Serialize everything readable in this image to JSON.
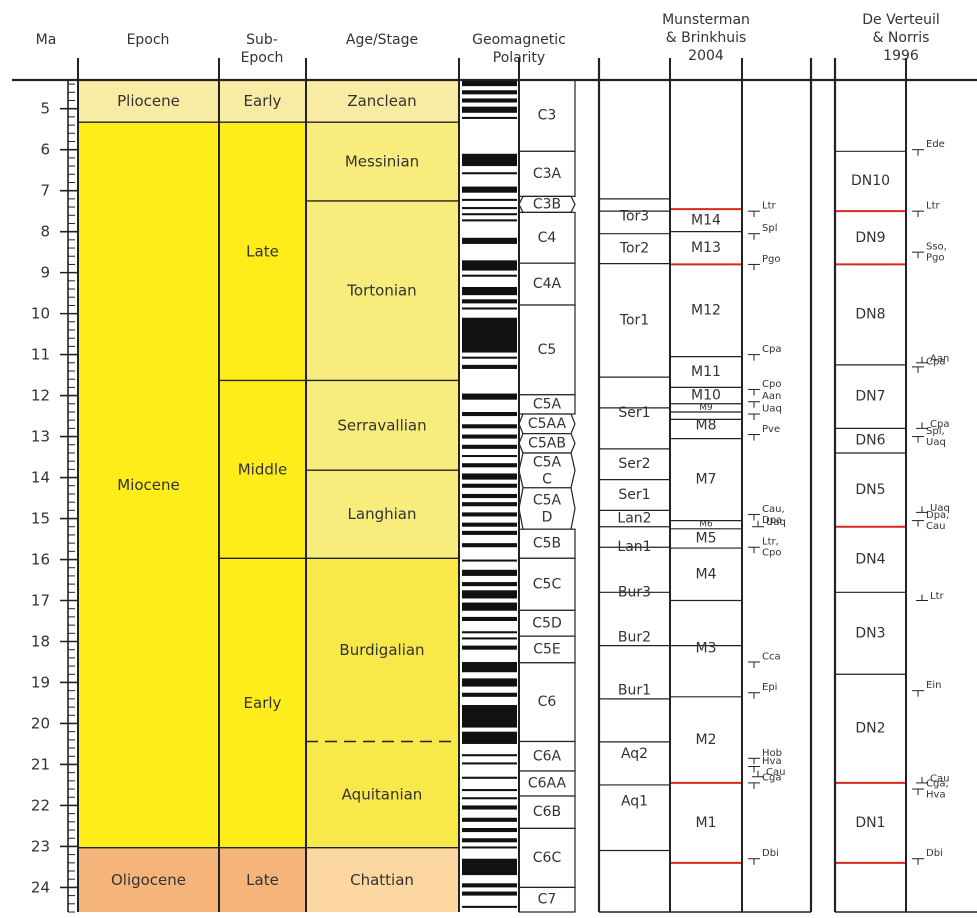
{
  "headers": {
    "ma": "Ma",
    "epoch": "Epoch",
    "subepoch": [
      "Sub-",
      "Epoch"
    ],
    "age": "Age/Stage",
    "polarity": [
      "Geomagnetic",
      "Polarity"
    ],
    "munsterman": [
      "Munsterman",
      "& Brinkhuis",
      "2004"
    ],
    "deverteuil": [
      "De Verteuil",
      "& Norris",
      "1996"
    ]
  },
  "axis": {
    "min": 4.3,
    "max": 24.6,
    "major_ticks": [
      5,
      6,
      7,
      8,
      9,
      10,
      11,
      12,
      13,
      14,
      15,
      16,
      17,
      18,
      19,
      20,
      21,
      22,
      23,
      24
    ],
    "minor_step": 0.2
  },
  "colors": {
    "pliocene": "#f8eba3",
    "miocene": "#ffed1b",
    "stage_light": "#f7ec7c",
    "stage_mid": "#f9e84a",
    "oligocene": "#f5b57a",
    "chattian": "#fcd7a2",
    "red_line": "#d9281e",
    "line": "#222222"
  },
  "epochs": [
    {
      "label": "Pliocene",
      "top": 4.3,
      "base": 5.33,
      "color": "#f8eba3"
    },
    {
      "label": "Miocene",
      "top": 5.33,
      "base": 23.03,
      "color": "#ffed1b"
    },
    {
      "label": "Oligocene",
      "top": 23.03,
      "base": 24.6,
      "color": "#f5b57a"
    }
  ],
  "subepochs": [
    {
      "label": "Early",
      "top": 4.3,
      "base": 5.33,
      "color": "#f8eba3"
    },
    {
      "label": "Late",
      "top": 5.33,
      "base": 11.63,
      "color": "#ffed1b"
    },
    {
      "label": "Middle",
      "top": 11.63,
      "base": 15.97,
      "color": "#ffed1b"
    },
    {
      "label": "Early",
      "top": 15.97,
      "base": 23.03,
      "color": "#ffed1b"
    },
    {
      "label": "Late",
      "top": 23.03,
      "base": 24.6,
      "color": "#f5b57a"
    }
  ],
  "stages": [
    {
      "label": "Zanclean",
      "top": 4.3,
      "base": 5.33,
      "color": "#f8eba3"
    },
    {
      "label": "Messinian",
      "top": 5.33,
      "base": 7.25,
      "color": "#f7ec7c"
    },
    {
      "label": "Tortonian",
      "top": 7.25,
      "base": 11.63,
      "color": "#f7ec7c"
    },
    {
      "label": "Serravallian",
      "top": 11.63,
      "base": 13.82,
      "color": "#f7ec7c"
    },
    {
      "label": "Langhian",
      "top": 13.82,
      "base": 15.97,
      "color": "#f7ec7c"
    },
    {
      "label": "Burdigalian",
      "top": 15.97,
      "base": 20.44,
      "color": "#f9e84a"
    },
    {
      "label": "Aquitanian",
      "top": 20.44,
      "base": 23.03,
      "color": "#f9e84a"
    },
    {
      "label": "Chattian",
      "top": 23.03,
      "base": 24.6,
      "color": "#fcd7a2"
    }
  ],
  "polarity_black": [
    [
      4.3,
      4.45
    ],
    [
      4.55,
      4.65
    ],
    [
      4.75,
      4.85
    ],
    [
      4.95,
      5.1
    ],
    [
      5.2,
      5.25
    ],
    [
      6.1,
      6.4
    ],
    [
      6.55,
      6.6
    ],
    [
      6.9,
      7.05
    ],
    [
      7.2,
      7.25
    ],
    [
      7.4,
      7.45
    ],
    [
      7.55,
      7.6
    ],
    [
      7.7,
      7.75
    ],
    [
      8.15,
      8.3
    ],
    [
      8.7,
      8.95
    ],
    [
      9.05,
      9.1
    ],
    [
      9.35,
      9.55
    ],
    [
      9.65,
      9.75
    ],
    [
      9.85,
      9.9
    ],
    [
      10.1,
      10.95
    ],
    [
      11.05,
      11.1
    ],
    [
      11.25,
      11.35
    ],
    [
      11.95,
      12.1
    ],
    [
      12.4,
      12.5
    ],
    [
      12.7,
      12.8
    ],
    [
      12.95,
      13.05
    ],
    [
      13.2,
      13.3
    ],
    [
      13.45,
      13.5
    ],
    [
      13.65,
      13.75
    ],
    [
      13.9,
      14.05
    ],
    [
      14.15,
      14.25
    ],
    [
      14.4,
      14.5
    ],
    [
      14.6,
      14.7
    ],
    [
      14.85,
      14.95
    ],
    [
      15.1,
      15.2
    ],
    [
      15.3,
      15.4
    ],
    [
      15.6,
      15.7
    ],
    [
      16.0,
      16.05
    ],
    [
      16.25,
      16.4
    ],
    [
      16.55,
      16.65
    ],
    [
      16.75,
      16.95
    ],
    [
      17.05,
      17.25
    ],
    [
      17.4,
      17.5
    ],
    [
      17.75,
      17.8
    ],
    [
      17.9,
      17.95
    ],
    [
      18.1,
      18.2
    ],
    [
      18.5,
      18.75
    ],
    [
      18.9,
      19.1
    ],
    [
      19.25,
      19.35
    ],
    [
      19.55,
      20.1
    ],
    [
      20.2,
      20.5
    ],
    [
      20.75,
      20.8
    ],
    [
      20.95,
      21.0
    ],
    [
      21.3,
      21.35
    ],
    [
      21.6,
      21.65
    ],
    [
      21.8,
      21.85
    ],
    [
      22.0,
      22.1
    ],
    [
      22.3,
      22.4
    ],
    [
      22.55,
      22.65
    ],
    [
      22.8,
      22.9
    ],
    [
      23.0,
      23.05
    ],
    [
      23.3,
      23.7
    ],
    [
      23.9,
      24.0
    ],
    [
      24.1,
      24.2
    ],
    [
      24.45,
      24.5
    ]
  ],
  "chrons": [
    {
      "label": "C3",
      "top": 4.3,
      "base": 6.04,
      "shape": "rect"
    },
    {
      "label": "C3A",
      "top": 6.04,
      "base": 7.14,
      "shape": "rect"
    },
    {
      "label": "C3B",
      "top": 7.14,
      "base": 7.53,
      "shape": "hex"
    },
    {
      "label": "C4",
      "top": 7.53,
      "base": 8.77,
      "shape": "rect"
    },
    {
      "label": "C4A",
      "top": 8.77,
      "base": 9.79,
      "shape": "rect"
    },
    {
      "label": "C5",
      "top": 9.79,
      "base": 11.98,
      "shape": "rect"
    },
    {
      "label": "C5A",
      "top": 11.98,
      "base": 12.45,
      "shape": "rect"
    },
    {
      "label": "C5AA",
      "top": 12.45,
      "base": 12.93,
      "shape": "hex"
    },
    {
      "label": "C5AB",
      "top": 12.93,
      "base": 13.4,
      "shape": "hex"
    },
    {
      "label": [
        "C5A",
        "C"
      ],
      "top": 13.4,
      "base": 14.25,
      "shape": "hex"
    },
    {
      "label": [
        "C5A",
        "D"
      ],
      "top": 14.25,
      "base": 15.26,
      "shape": "hex"
    },
    {
      "label": "C5B",
      "top": 15.26,
      "base": 15.97,
      "shape": "rect"
    },
    {
      "label": "C5C",
      "top": 15.97,
      "base": 17.24,
      "shape": "rect"
    },
    {
      "label": "C5D",
      "top": 17.24,
      "base": 17.87,
      "shape": "rect"
    },
    {
      "label": "C5E",
      "top": 17.87,
      "base": 18.52,
      "shape": "rect"
    },
    {
      "label": "C6",
      "top": 18.52,
      "base": 20.44,
      "shape": "rect"
    },
    {
      "label": "C6A",
      "top": 20.44,
      "base": 21.16,
      "shape": "rect"
    },
    {
      "label": "C6AA",
      "top": 21.16,
      "base": 21.77,
      "shape": "rect"
    },
    {
      "label": "C6B",
      "top": 21.77,
      "base": 22.56,
      "shape": "rect"
    },
    {
      "label": "C6C",
      "top": 22.56,
      "base": 24.0,
      "shape": "rect"
    },
    {
      "label": "C7",
      "top": 24.0,
      "base": 24.6,
      "shape": "rect"
    }
  ],
  "munsterman_a": {
    "boundaries": [
      7.2,
      7.5,
      8.05,
      8.78,
      11.55,
      12.3,
      13.3,
      14.05,
      14.8,
      15.2,
      15.7,
      16.8,
      18.1,
      19.4,
      20.45,
      21.5,
      23.1
    ],
    "zones": [
      {
        "label": "Tor3",
        "top": 7.2,
        "base": 8.05
      },
      {
        "label": "Tor2",
        "top": 8.05,
        "base": 8.78
      },
      {
        "label": "Tor1",
        "top": 8.78,
        "base": 11.55
      },
      {
        "label": "Ser1",
        "top": 11.55,
        "base": 13.3
      },
      {
        "label": "Ser2",
        "top": 13.3,
        "base": 14.05
      },
      {
        "label": "Ser1",
        "top": 14.05,
        "base": 14.8
      },
      {
        "label": "Lan2",
        "top": 14.8,
        "base": 15.2
      },
      {
        "label": "Lan1",
        "top": 15.2,
        "base": 16.2
      },
      {
        "label": "Bur3",
        "top": 16.2,
        "base": 17.4
      },
      {
        "label": "Bur2",
        "top": 17.4,
        "base": 18.4
      },
      {
        "label": "Bur1",
        "top": 18.4,
        "base": 20.0
      },
      {
        "label": "Aq2",
        "top": 20.0,
        "base": 21.5
      },
      {
        "label": "Aq1",
        "top": 21.5,
        "base": 22.3
      }
    ]
  },
  "munsterman_b": {
    "lines": [
      {
        "at": 7.45,
        "red": true
      },
      {
        "at": 8.0,
        "red": false
      },
      {
        "at": 8.8,
        "red": true
      },
      {
        "at": 11.05,
        "red": false
      },
      {
        "at": 11.8,
        "red": false
      },
      {
        "at": 12.2,
        "red": false
      },
      {
        "at": 12.4,
        "red": false
      },
      {
        "at": 12.58,
        "red": false
      },
      {
        "at": 13.05,
        "red": false
      },
      {
        "at": 15.05,
        "red": false
      },
      {
        "at": 15.25,
        "red": false
      },
      {
        "at": 15.72,
        "red": false
      },
      {
        "at": 17.0,
        "red": false
      },
      {
        "at": 18.1,
        "red": false
      },
      {
        "at": 19.35,
        "red": false
      },
      {
        "at": 21.45,
        "red": true
      },
      {
        "at": 23.4,
        "red": true
      }
    ],
    "zones": [
      {
        "label": "M14",
        "top": 7.45,
        "base": 8.0,
        "small": false
      },
      {
        "label": "M13",
        "top": 8.0,
        "base": 8.8,
        "small": false
      },
      {
        "label": "M12",
        "top": 8.8,
        "base": 11.05,
        "small": false
      },
      {
        "label": "M11",
        "top": 11.05,
        "base": 11.8,
        "small": false
      },
      {
        "label": "M10",
        "top": 11.8,
        "base": 12.2,
        "small": false
      },
      {
        "label": "M9",
        "top": 12.2,
        "base": 12.4,
        "small": true
      },
      {
        "label": "M8",
        "top": 12.4,
        "base": 13.05,
        "small": false
      },
      {
        "label": "M7",
        "top": 13.05,
        "base": 15.05,
        "small": false
      },
      {
        "label": "M6",
        "top": 15.05,
        "base": 15.25,
        "small": true
      },
      {
        "label": "M5",
        "top": 15.25,
        "base": 15.72,
        "small": false
      },
      {
        "label": "M4",
        "top": 15.72,
        "base": 17.0,
        "small": false
      },
      {
        "label": "M3",
        "top": 17.0,
        "base": 19.35,
        "small": false
      },
      {
        "label": "M2",
        "top": 19.35,
        "base": 21.45,
        "small": false
      },
      {
        "label": "M1",
        "top": 21.45,
        "base": 23.4,
        "small": false
      }
    ]
  },
  "munsterman_events": [
    {
      "at": 7.5,
      "lines": [
        "Ltr"
      ]
    },
    {
      "at": 8.05,
      "lines": [
        "Spl"
      ]
    },
    {
      "at": 8.8,
      "lines": [
        "Pgo"
      ]
    },
    {
      "at": 11.0,
      "lines": [
        "Cpa"
      ]
    },
    {
      "at": 11.85,
      "lines": [
        "Cpo"
      ]
    },
    {
      "at": 12.15,
      "lines": [
        "Aan"
      ]
    },
    {
      "at": 12.45,
      "lines": [
        "Uaq"
      ]
    },
    {
      "at": 12.95,
      "lines": [
        "Pve"
      ]
    },
    {
      "at": 14.9,
      "lines": [
        "Cau,",
        "Dpa"
      ]
    },
    {
      "at": 15.7,
      "lines": [
        "Ltr,",
        "Cpo"
      ]
    },
    {
      "at": 18.5,
      "lines": [
        "Cca"
      ]
    },
    {
      "at": 19.25,
      "lines": [
        "Epi"
      ]
    },
    {
      "at": 20.85,
      "lines": [
        "Hob"
      ]
    },
    {
      "at": 21.05,
      "lines": [
        "Hva"
      ]
    },
    {
      "at": 21.45,
      "lines": [
        "Cga"
      ]
    },
    {
      "at": 23.3,
      "lines": [
        "Dbi"
      ]
    }
  ],
  "munsterman_events_up": [
    {
      "at": 15.2,
      "label": "Uaq"
    },
    {
      "at": 21.3,
      "label": "Cau"
    }
  ],
  "deverteuil": {
    "lines": [
      {
        "at": 6.04,
        "red": false
      },
      {
        "at": 7.5,
        "red": true
      },
      {
        "at": 8.8,
        "red": true
      },
      {
        "at": 11.25,
        "red": false
      },
      {
        "at": 12.8,
        "red": false
      },
      {
        "at": 13.4,
        "red": false
      },
      {
        "at": 15.2,
        "red": true
      },
      {
        "at": 16.8,
        "red": false
      },
      {
        "at": 18.8,
        "red": false
      },
      {
        "at": 21.45,
        "red": true
      },
      {
        "at": 23.4,
        "red": true
      }
    ],
    "zones": [
      {
        "label": "DN10",
        "top": 6.04,
        "base": 7.5
      },
      {
        "label": "DN9",
        "top": 7.5,
        "base": 8.8
      },
      {
        "label": "DN8",
        "top": 8.8,
        "base": 11.25
      },
      {
        "label": "DN7",
        "top": 11.25,
        "base": 12.8
      },
      {
        "label": "DN6",
        "top": 12.8,
        "base": 13.4
      },
      {
        "label": "DN5",
        "top": 13.4,
        "base": 15.2
      },
      {
        "label": "DN4",
        "top": 15.2,
        "base": 16.8
      },
      {
        "label": "DN3",
        "top": 16.8,
        "base": 18.8
      },
      {
        "label": "DN2",
        "top": 18.8,
        "base": 21.45
      },
      {
        "label": "DN1",
        "top": 21.45,
        "base": 23.4
      }
    ]
  },
  "deverteuil_events": [
    {
      "at": 6.0,
      "lines": [
        "Ede"
      ]
    },
    {
      "at": 7.5,
      "lines": [
        "Ltr"
      ]
    },
    {
      "at": 8.5,
      "lines": [
        "Sso,",
        "Pgo"
      ]
    },
    {
      "at": 11.3,
      "lines": [
        "Cpa"
      ]
    },
    {
      "at": 13.0,
      "lines": [
        "Spl,",
        "Uaq"
      ]
    },
    {
      "at": 15.05,
      "lines": [
        "Dpa,",
        "Cau"
      ]
    },
    {
      "at": 19.2,
      "lines": [
        "Ein"
      ]
    },
    {
      "at": 21.6,
      "lines": [
        "Cga,",
        "Hva"
      ]
    },
    {
      "at": 23.3,
      "lines": [
        "Dbi"
      ]
    }
  ],
  "deverteuil_events_up": [
    {
      "at": 11.2,
      "label": "Aan"
    },
    {
      "at": 12.8,
      "label": "Cpa"
    },
    {
      "at": 14.85,
      "label": "Uaq"
    },
    {
      "at": 17.0,
      "label": "Ltr"
    },
    {
      "at": 21.45,
      "label": "Cau"
    }
  ]
}
